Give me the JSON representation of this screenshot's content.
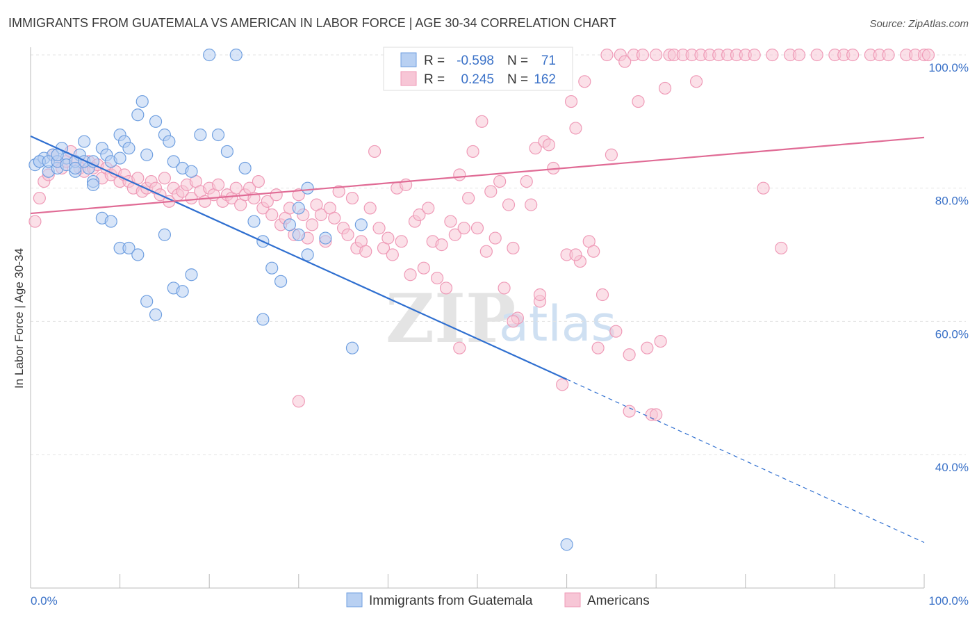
{
  "chart_data": {
    "type": "scatter",
    "title": "IMMIGRANTS FROM GUATEMALA VS AMERICAN IN LABOR FORCE | AGE 30-34 CORRELATION CHART",
    "source": "Source: ZipAtlas.com",
    "ylabel": "In Labor Force | Age 30-34",
    "xlim": [
      0,
      100
    ],
    "ylim": [
      20,
      100
    ],
    "x_tick_labels": [
      "0.0%",
      "100.0%"
    ],
    "y_ticks": [
      {
        "value": 40,
        "label": "40.0%"
      },
      {
        "value": 60,
        "label": "60.0%"
      },
      {
        "value": 80,
        "label": "80.0%"
      },
      {
        "value": 100,
        "label": "100.0%"
      }
    ],
    "grid": true,
    "legend": {
      "position": "top-center",
      "rows": [
        {
          "r_label": "R =",
          "r_value": "-0.598",
          "n_label": "N =",
          "n_value": "71"
        },
        {
          "r_label": "R =",
          "r_value": "0.245",
          "n_label": "N =",
          "n_value": "162"
        }
      ]
    },
    "series": [
      {
        "name": "Immigrants from Guatemala",
        "color": "#6f9fe0",
        "fill": "#b8d0f2",
        "trend_color": "#2f6fd0",
        "trend": {
          "x0": 0,
          "y0": 87.8,
          "x1": 60,
          "y1": 51.3,
          "x_end": 100,
          "y_end": 26.8
        },
        "points": [
          [
            0.5,
            83.5
          ],
          [
            1,
            84
          ],
          [
            1.5,
            84.5
          ],
          [
            2,
            82.5
          ],
          [
            2.5,
            85
          ],
          [
            3,
            83
          ],
          [
            3.5,
            86
          ],
          [
            4,
            84.5
          ],
          [
            5,
            82.5
          ],
          [
            5.5,
            85
          ],
          [
            6,
            87
          ],
          [
            6.5,
            83
          ],
          [
            7,
            81
          ],
          [
            8,
            86
          ],
          [
            8.5,
            85
          ],
          [
            9,
            84
          ],
          [
            10,
            88
          ],
          [
            10.5,
            87
          ],
          [
            11,
            86
          ],
          [
            12,
            91
          ],
          [
            12.5,
            93
          ],
          [
            13,
            85
          ],
          [
            14,
            90
          ],
          [
            15,
            88
          ],
          [
            15.5,
            87
          ],
          [
            16,
            84
          ],
          [
            17,
            83
          ],
          [
            18,
            82.5
          ],
          [
            19,
            88
          ],
          [
            20,
            100
          ],
          [
            21,
            88
          ],
          [
            22,
            85.5
          ],
          [
            23,
            100
          ],
          [
            24,
            83
          ],
          [
            25,
            75
          ],
          [
            26,
            72
          ],
          [
            27,
            68
          ],
          [
            28,
            66
          ],
          [
            29,
            74.5
          ],
          [
            30,
            77
          ],
          [
            31,
            70
          ],
          [
            8,
            75.5
          ],
          [
            9,
            75
          ],
          [
            10,
            71
          ],
          [
            11,
            71
          ],
          [
            12,
            70
          ],
          [
            13,
            63
          ],
          [
            14,
            61
          ],
          [
            15,
            73
          ],
          [
            16,
            65
          ],
          [
            17,
            64.5
          ],
          [
            18,
            67
          ],
          [
            26,
            60.3
          ],
          [
            31,
            80
          ],
          [
            30,
            73
          ],
          [
            33,
            72.5
          ],
          [
            37,
            74.5
          ],
          [
            36,
            56
          ],
          [
            60,
            26.5
          ],
          [
            1,
            84
          ],
          [
            2,
            84
          ],
          [
            3,
            84
          ],
          [
            4,
            83.5
          ],
          [
            5,
            84
          ],
          [
            6,
            84
          ],
          [
            7,
            80.5
          ],
          [
            5,
            83
          ],
          [
            7,
            84
          ],
          [
            10,
            84.5
          ],
          [
            3,
            85
          ]
        ]
      },
      {
        "name": "Americans",
        "color": "#ef9ab7",
        "fill": "#f7c6d6",
        "trend_color": "#e06b95",
        "trend": {
          "x0": 0,
          "y0": 76.2,
          "x1": 100,
          "y1": 87.6
        },
        "points": [
          [
            0.5,
            75
          ],
          [
            1,
            78.5
          ],
          [
            1.5,
            81
          ],
          [
            2,
            82
          ],
          [
            2.5,
            85
          ],
          [
            3,
            84
          ],
          [
            3.5,
            83
          ],
          [
            4,
            84
          ],
          [
            4.5,
            85.5
          ],
          [
            5,
            84
          ],
          [
            5.5,
            83
          ],
          [
            6,
            82.5
          ],
          [
            6.5,
            84
          ],
          [
            7,
            83
          ],
          [
            7.5,
            83.5
          ],
          [
            8,
            81.5
          ],
          [
            8.5,
            83
          ],
          [
            9,
            82
          ],
          [
            9.5,
            82.5
          ],
          [
            10,
            81
          ],
          [
            10.5,
            82
          ],
          [
            11,
            81
          ],
          [
            11.5,
            80
          ],
          [
            12,
            81.5
          ],
          [
            12.5,
            79.5
          ],
          [
            13,
            80
          ],
          [
            13.5,
            81
          ],
          [
            14,
            80
          ],
          [
            14.5,
            79
          ],
          [
            15,
            81.5
          ],
          [
            15.5,
            78
          ],
          [
            16,
            80
          ],
          [
            16.5,
            79
          ],
          [
            17,
            79.5
          ],
          [
            17.5,
            80.5
          ],
          [
            18,
            78.5
          ],
          [
            18.5,
            81
          ],
          [
            19,
            79.5
          ],
          [
            19.5,
            78
          ],
          [
            20,
            80
          ],
          [
            20.5,
            79
          ],
          [
            21,
            80.5
          ],
          [
            21.5,
            78
          ],
          [
            22,
            79
          ],
          [
            22.5,
            78.5
          ],
          [
            23,
            80
          ],
          [
            23.5,
            77.5
          ],
          [
            24,
            79
          ],
          [
            24.5,
            80
          ],
          [
            25,
            78.5
          ],
          [
            25.5,
            81
          ],
          [
            26,
            77
          ],
          [
            26.5,
            78
          ],
          [
            27,
            76
          ],
          [
            27.5,
            79
          ],
          [
            28,
            74.5
          ],
          [
            28.5,
            75.5
          ],
          [
            29,
            77
          ],
          [
            29.5,
            73
          ],
          [
            30,
            79
          ],
          [
            30.5,
            76
          ],
          [
            31,
            72.5
          ],
          [
            31.5,
            74.5
          ],
          [
            32,
            77.5
          ],
          [
            32.5,
            76
          ],
          [
            33,
            72
          ],
          [
            33.5,
            77
          ],
          [
            34,
            75.5
          ],
          [
            34.5,
            79.5
          ],
          [
            35,
            74
          ],
          [
            35.5,
            73
          ],
          [
            36,
            78.5
          ],
          [
            36.5,
            71
          ],
          [
            37,
            72
          ],
          [
            37.5,
            70.5
          ],
          [
            38,
            77
          ],
          [
            38.5,
            85.5
          ],
          [
            39,
            74
          ],
          [
            39.5,
            71
          ],
          [
            40,
            72.5
          ],
          [
            40.5,
            70
          ],
          [
            41,
            80
          ],
          [
            41.5,
            72
          ],
          [
            42,
            80.5
          ],
          [
            42.5,
            67
          ],
          [
            43,
            75
          ],
          [
            43.5,
            76
          ],
          [
            44,
            68
          ],
          [
            44.5,
            77
          ],
          [
            45,
            72
          ],
          [
            45.5,
            66.5
          ],
          [
            46,
            71.5
          ],
          [
            46.5,
            65
          ],
          [
            47,
            75
          ],
          [
            47.5,
            73
          ],
          [
            48,
            82
          ],
          [
            48.5,
            74
          ],
          [
            49,
            78.5
          ],
          [
            49.5,
            85.5
          ],
          [
            50,
            74
          ],
          [
            50.5,
            90
          ],
          [
            51,
            70.5
          ],
          [
            51.5,
            79.5
          ],
          [
            52,
            72.5
          ],
          [
            52.5,
            81
          ],
          [
            53,
            65
          ],
          [
            53.5,
            77.5
          ],
          [
            54,
            71
          ],
          [
            54.5,
            60.5
          ],
          [
            55,
            100
          ],
          [
            55.5,
            81
          ],
          [
            56,
            77.5
          ],
          [
            56.5,
            86
          ],
          [
            57,
            63
          ],
          [
            57.5,
            87
          ],
          [
            58,
            86.5
          ],
          [
            58.5,
            83
          ],
          [
            59,
            100
          ],
          [
            59.5,
            50.5
          ],
          [
            60,
            70
          ],
          [
            60.5,
            93
          ],
          [
            61,
            89
          ],
          [
            61.5,
            69
          ],
          [
            62,
            96
          ],
          [
            62.5,
            72
          ],
          [
            63,
            70.5
          ],
          [
            63.5,
            56
          ],
          [
            64,
            64
          ],
          [
            64.5,
            100
          ],
          [
            65,
            85
          ],
          [
            65.5,
            58.5
          ],
          [
            66,
            100
          ],
          [
            66.5,
            99
          ],
          [
            67,
            55
          ],
          [
            67.5,
            100
          ],
          [
            68,
            93
          ],
          [
            68.5,
            100
          ],
          [
            69,
            56
          ],
          [
            69.5,
            46
          ],
          [
            70,
            100
          ],
          [
            70.5,
            57
          ],
          [
            71,
            95
          ],
          [
            71.5,
            100
          ],
          [
            72,
            100
          ],
          [
            73,
            100
          ],
          [
            74,
            100
          ],
          [
            74.5,
            96
          ],
          [
            75,
            100
          ],
          [
            76,
            100
          ],
          [
            77,
            100
          ],
          [
            78,
            100
          ],
          [
            79,
            100
          ],
          [
            80,
            100
          ],
          [
            81,
            100
          ],
          [
            82,
            80
          ],
          [
            83,
            100
          ],
          [
            84,
            71
          ],
          [
            85,
            100
          ],
          [
            86,
            100
          ],
          [
            88,
            100
          ],
          [
            90,
            100
          ],
          [
            91,
            100
          ],
          [
            92,
            100
          ],
          [
            94,
            100
          ],
          [
            95,
            100
          ],
          [
            96,
            100
          ],
          [
            98,
            100
          ],
          [
            99,
            100
          ],
          [
            100,
            100
          ],
          [
            101,
            100
          ],
          [
            30,
            48
          ],
          [
            48,
            56
          ],
          [
            54,
            60
          ],
          [
            57,
            64
          ],
          [
            58,
            100
          ],
          [
            61,
            70
          ],
          [
            67,
            46.5
          ],
          [
            70,
            46
          ]
        ]
      }
    ]
  }
}
